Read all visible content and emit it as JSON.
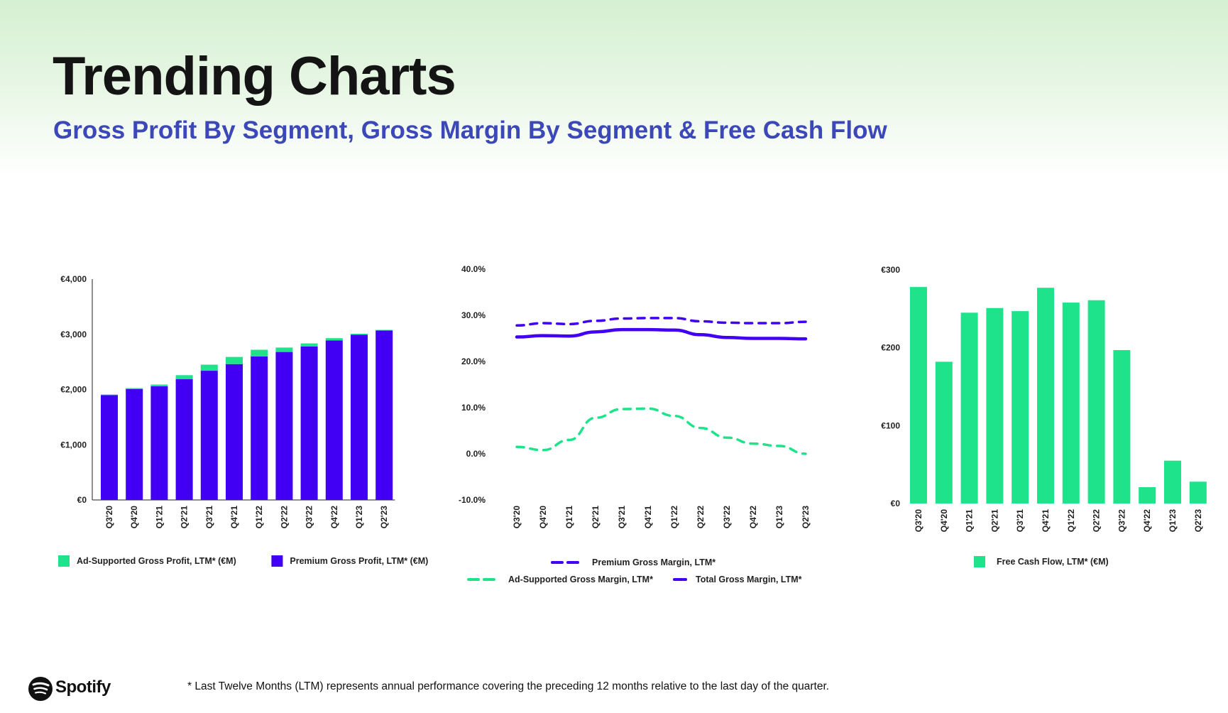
{
  "page": {
    "title": "Trending Charts",
    "subtitle": "Gross Profit By Segment, Gross Margin By Segment & Free Cash Flow",
    "footnote": "* Last Twelve Months (LTM) represents annual performance covering the preceding 12 months relative to the last day of the quarter.",
    "logo_text": "Spotify",
    "logo_icon": "spotify-logo-icon"
  },
  "colors": {
    "premium": "#4100f4",
    "ad_supported": "#1ee38a",
    "axis": "#222222"
  },
  "chart_data": [
    {
      "type": "bar",
      "stacked": true,
      "categories": [
        "Q3'20",
        "Q4'20",
        "Q1'21",
        "Q2'21",
        "Q3'21",
        "Q4'21",
        "Q1'22",
        "Q2'22",
        "Q3'22",
        "Q4'22",
        "Q1'23",
        "Q2'23"
      ],
      "series": [
        {
          "name": "Premium Gross Profit, LTM* (€M)",
          "color": "#4100f4",
          "values": [
            1900,
            2010,
            2060,
            2190,
            2340,
            2460,
            2600,
            2680,
            2780,
            2890,
            2990,
            3070
          ]
        },
        {
          "name": "Ad-Supported Gross Profit, LTM* (€M)",
          "color": "#1ee38a",
          "values": [
            10,
            15,
            30,
            70,
            110,
            130,
            120,
            80,
            55,
            40,
            20,
            10
          ]
        }
      ],
      "yticks": [
        "€0",
        "€1,000",
        "€2,000",
        "€3,000",
        "€4,000"
      ],
      "ylim": [
        0,
        4000
      ],
      "legend": [
        {
          "label": "Ad-Supported Gross Profit, LTM* (€M)",
          "color": "#1ee38a"
        },
        {
          "label": "Premium Gross Profit, LTM*  (€M)",
          "color": "#4100f4"
        }
      ],
      "legend_position": "bottom"
    },
    {
      "type": "line",
      "categories": [
        "Q3'20",
        "Q4'20",
        "Q1'21",
        "Q2'21",
        "Q3'21",
        "Q4'21",
        "Q1'22",
        "Q2'22",
        "Q3'22",
        "Q4'22",
        "Q1'23",
        "Q2'23"
      ],
      "series": [
        {
          "name": "Premium Gross Margin, LTM*",
          "color": "#4100f4",
          "style": "dashed",
          "values": [
            27.8,
            28.3,
            28.1,
            28.8,
            29.3,
            29.4,
            29.4,
            28.7,
            28.4,
            28.3,
            28.3,
            28.6
          ]
        },
        {
          "name": "Ad-Supported Gross Margin, LTM*",
          "color": "#1ee38a",
          "style": "dashed",
          "values": [
            1.5,
            0.8,
            3.0,
            7.8,
            9.7,
            9.8,
            8.2,
            5.6,
            3.5,
            2.2,
            1.7,
            0.0
          ]
        },
        {
          "name": "Total Gross Margin, LTM*",
          "color": "#4100f4",
          "style": "solid",
          "values": [
            25.3,
            25.6,
            25.5,
            26.4,
            26.9,
            26.9,
            26.8,
            25.8,
            25.2,
            25.0,
            25.0,
            24.9
          ]
        }
      ],
      "yticks": [
        "-10.0%",
        "0.0%",
        "10.0%",
        "20.0%",
        "30.0%",
        "40.0%"
      ],
      "ylim": [
        -10,
        40
      ],
      "legend": [
        {
          "label": "Premium Gross Margin, LTM*",
          "color": "#4100f4",
          "style": "dashed"
        },
        {
          "label": "Ad-Supported Gross Margin, LTM*",
          "color": "#1ee38a",
          "style": "dashed"
        },
        {
          "label": "Total Gross Margin, LTM*",
          "color": "#4100f4",
          "style": "solid"
        }
      ],
      "legend_position": "bottom"
    },
    {
      "type": "bar",
      "categories": [
        "Q3'20",
        "Q4'20",
        "Q1'21",
        "Q2'21",
        "Q3'21",
        "Q4'21",
        "Q1'22",
        "Q2'22",
        "Q3'22",
        "Q4'22",
        "Q1'23",
        "Q2'23"
      ],
      "series": [
        {
          "name": "Free Cash Flow, LTM* (€M)",
          "color": "#1ee38a",
          "values": [
            278,
            182,
            245,
            251,
            247,
            277,
            258,
            261,
            197,
            21,
            55,
            28
          ]
        }
      ],
      "yticks": [
        "€0",
        "€100",
        "€200",
        "€300"
      ],
      "ylim": [
        0,
        300
      ],
      "legend": [
        {
          "label": "Free Cash Flow, LTM* (€M)",
          "color": "#1ee38a"
        }
      ],
      "legend_position": "bottom"
    }
  ]
}
